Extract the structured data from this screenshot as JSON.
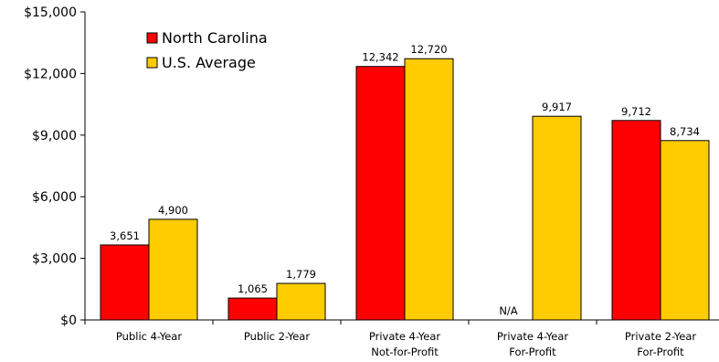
{
  "chart_data": {
    "type": "bar",
    "categories": [
      [
        "Public 4-Year"
      ],
      [
        "Public 2-Year"
      ],
      [
        "Private 4-Year",
        "Not-for-Profit"
      ],
      [
        "Private 4-Year",
        "For-Profit"
      ],
      [
        "Private 2-Year",
        "For-Profit"
      ]
    ],
    "series": [
      {
        "name": "North Carolina",
        "color": "#FF0000",
        "values": [
          3651,
          1065,
          12342,
          null,
          9712
        ],
        "labels": [
          "3,651",
          "1,065",
          "12,342",
          "N/A",
          "9,712"
        ]
      },
      {
        "name": "U.S. Average",
        "color": "#FFCC00",
        "values": [
          4900,
          1779,
          12720,
          9917,
          8734
        ],
        "labels": [
          "4,900",
          "1,779",
          "12,720",
          "9,917",
          "8,734"
        ]
      }
    ],
    "ylim": [
      0,
      15000
    ],
    "yticks": [
      0,
      3000,
      6000,
      9000,
      12000,
      15000
    ],
    "ytick_labels": [
      "$0",
      "$3,000",
      "$6,000",
      "$9,000",
      "$12,000",
      "$15,000"
    ],
    "legend_position": "top-left",
    "grid": false
  }
}
